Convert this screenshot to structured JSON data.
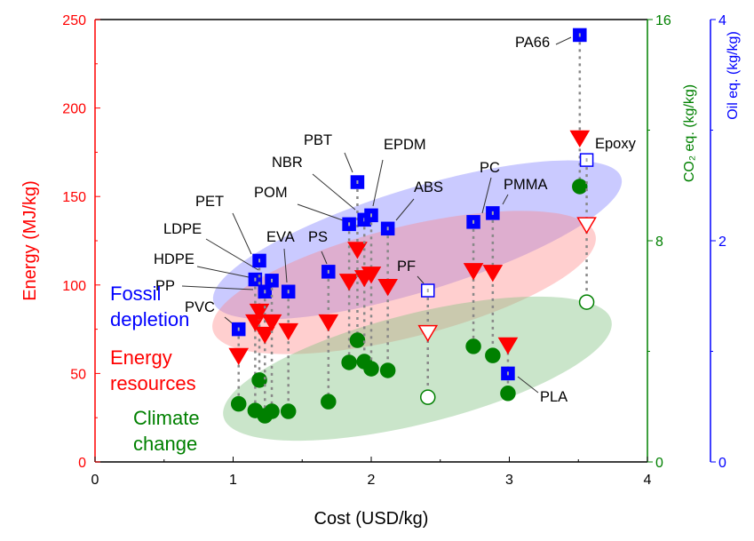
{
  "chart_data": {
    "type": "scatter",
    "xlabel": "Cost (USD/kg)",
    "ylabel": "Energy (MJ/kg)",
    "y2label": "CO₂ eq. (kg/kg)",
    "y3label": "Oil eq. (kg/kg)",
    "xlim": [
      0,
      4
    ],
    "ylim": [
      0,
      250
    ],
    "y2lim": [
      0,
      16
    ],
    "y3lim": [
      0,
      4
    ],
    "xticks": [
      "0",
      "1",
      "2",
      "3",
      "4"
    ],
    "yticks": [
      "0",
      "50",
      "100",
      "150",
      "200",
      "250"
    ],
    "y2ticks": [
      "0",
      "8",
      "16"
    ],
    "y3ticks": [
      "0",
      "2",
      "4"
    ],
    "grid": false,
    "colors": {
      "energy": "#ff0000",
      "co2": "#008000",
      "oil": "#0000ff"
    },
    "groups": [
      {
        "name": "Fossil\ndepletion",
        "lines": [
          "Fossil",
          "depletion"
        ],
        "color": "#0000ff"
      },
      {
        "name": "Energy\nresources",
        "lines": [
          "Energy",
          "resources"
        ],
        "color": "#ff0000"
      },
      {
        "name": "Climate\nchange",
        "lines": [
          "Climate",
          "change"
        ],
        "color": "#008000"
      }
    ],
    "materials": [
      {
        "label": "PVC",
        "cost": 1.04,
        "energy": 60,
        "co2": 2.1,
        "oil": 1.2,
        "open": false
      },
      {
        "label": "HDPE",
        "cost": 1.16,
        "energy": 79,
        "co2": 1.86,
        "oil": 1.65,
        "open": false
      },
      {
        "label": "PET",
        "cost": 1.19,
        "energy": 85,
        "co2": 2.96,
        "oil": 1.82,
        "open": false
      },
      {
        "label": "PP",
        "cost": 1.23,
        "energy": 72,
        "co2": 1.67,
        "oil": 1.54,
        "open": false
      },
      {
        "label": "LDPE",
        "cost": 1.28,
        "energy": 79,
        "co2": 1.83,
        "oil": 1.64,
        "open": false
      },
      {
        "label": "EVA",
        "cost": 1.4,
        "energy": 74,
        "co2": 1.83,
        "oil": 1.54,
        "open": false
      },
      {
        "label": "PS",
        "cost": 1.69,
        "energy": 79,
        "co2": 2.18,
        "oil": 1.72,
        "open": false
      },
      {
        "label": "POM",
        "cost": 1.84,
        "energy": 102,
        "co2": 3.6,
        "oil": 2.15,
        "open": false
      },
      {
        "label": "PBT",
        "cost": 1.9,
        "energy": 120,
        "co2": 4.4,
        "oil": 2.53,
        "open": false
      },
      {
        "label": "NBR",
        "cost": 1.95,
        "energy": 104,
        "co2": 3.63,
        "oil": 2.19,
        "open": false
      },
      {
        "label": "EPDM",
        "cost": 2.0,
        "energy": 106,
        "co2": 3.37,
        "oil": 2.23,
        "open": false
      },
      {
        "label": "ABS",
        "cost": 2.12,
        "energy": 99,
        "co2": 3.31,
        "oil": 2.11,
        "open": false
      },
      {
        "label": "PF",
        "cost": 2.41,
        "energy": 73,
        "co2": 2.34,
        "oil": 1.55,
        "open": true
      },
      {
        "label": "PC",
        "cost": 2.74,
        "energy": 108,
        "co2": 4.18,
        "oil": 2.17,
        "open": false
      },
      {
        "label": "PMMA",
        "cost": 2.88,
        "energy": 107,
        "co2": 3.85,
        "oil": 2.25,
        "open": false
      },
      {
        "label": "PLA",
        "cost": 2.99,
        "energy": 66,
        "co2": 2.48,
        "oil": 0.8,
        "open": false
      },
      {
        "label": "PA66",
        "cost": 3.51,
        "energy": 183,
        "co2": 9.96,
        "oil": 3.86,
        "open": false
      },
      {
        "label": "Epoxy",
        "cost": 3.56,
        "energy": 134,
        "co2": 5.78,
        "oil": 2.73,
        "open": true
      }
    ]
  }
}
